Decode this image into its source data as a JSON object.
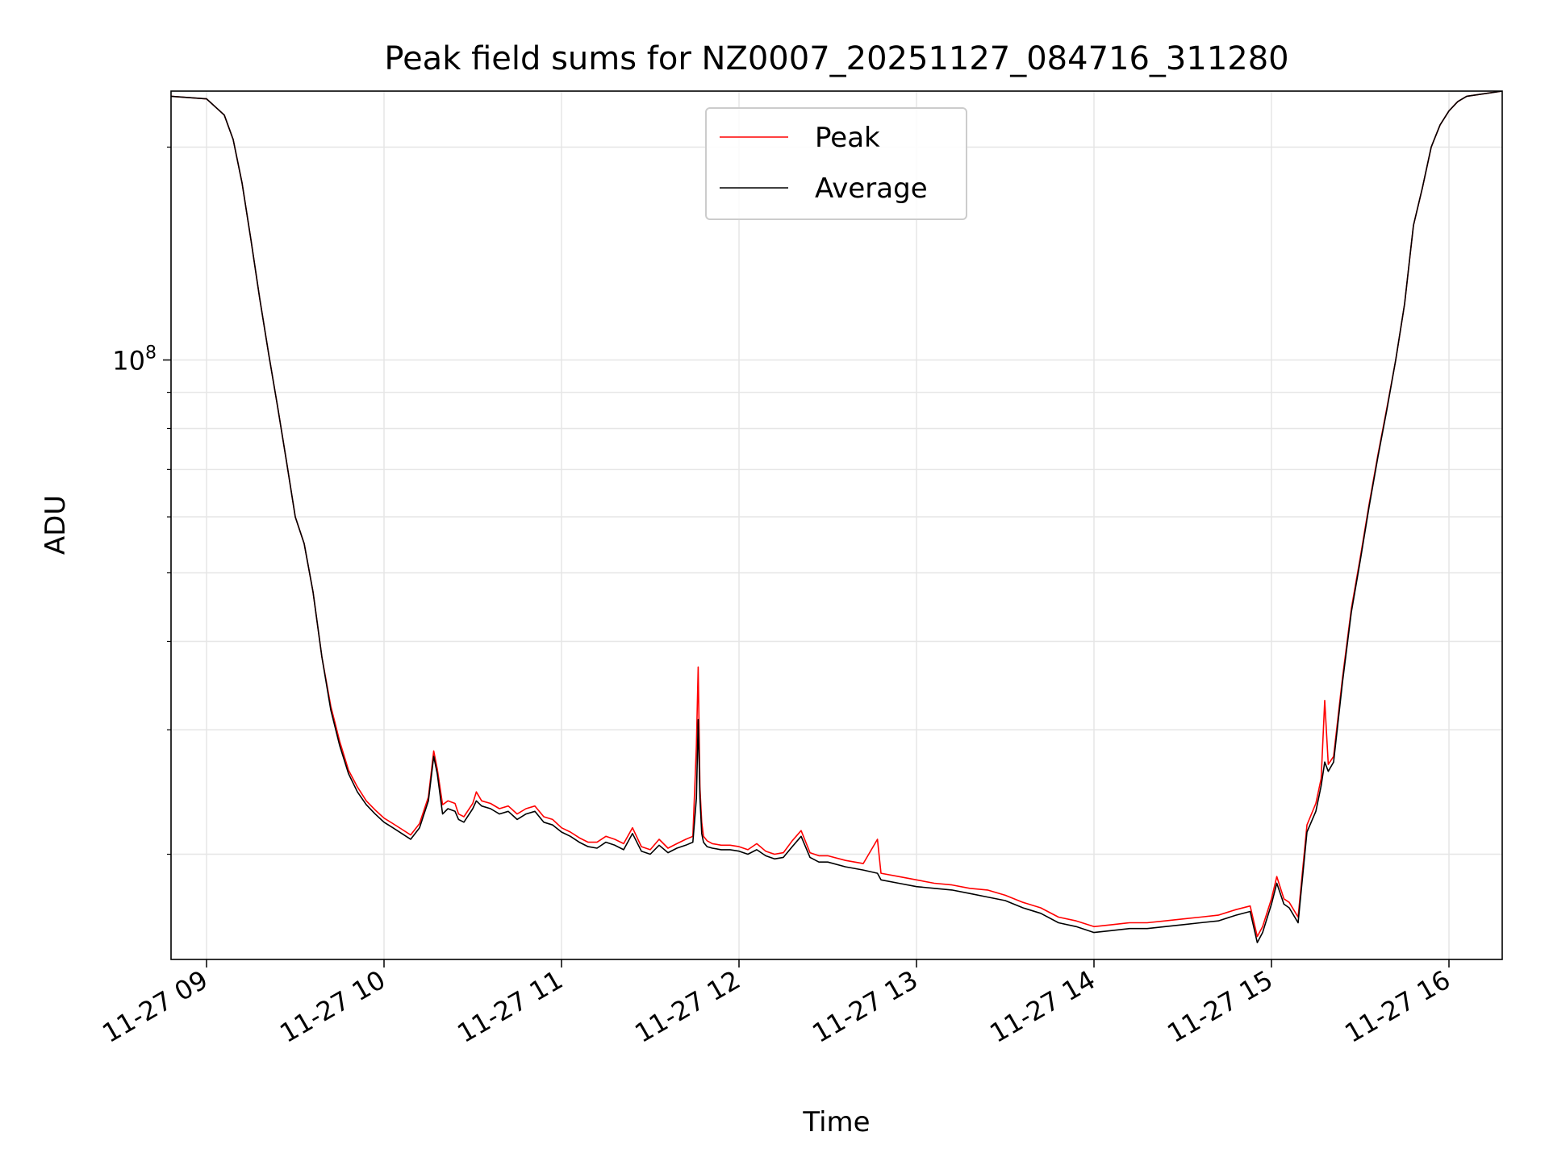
{
  "chart_data": {
    "type": "line",
    "title": "Peak field sums for NZ0007_20251127_084716_311280",
    "xlabel": "Time",
    "ylabel": "ADU",
    "yscale": "log",
    "grid": true,
    "grid_minor": true,
    "legend": {
      "placement": "top-center",
      "entries": [
        "Peak",
        "Average"
      ]
    },
    "x_ticks": [
      "11-27 09",
      "11-27 10",
      "11-27 11",
      "11-27 12",
      "11-27 13",
      "11-27 14",
      "11-27 15",
      "11-27 16"
    ],
    "x_tick_hours": [
      9,
      10,
      11,
      12,
      13,
      14,
      15,
      16
    ],
    "xlim_hours": [
      8.8,
      16.3
    ],
    "y_tick_labels": [
      {
        "value": 100000000,
        "base": "10",
        "exp": "8"
      }
    ],
    "y_minor_ticks": [
      20000000,
      30000000,
      40000000,
      50000000,
      60000000,
      70000000,
      80000000,
      90000000,
      200000000
    ],
    "ylim": [
      14200000,
      240000000
    ],
    "series": [
      {
        "name": "Average",
        "color": "#000000",
        "x_hours": [
          8.8,
          9.0,
          9.1,
          9.15,
          9.2,
          9.25,
          9.3,
          9.35,
          9.4,
          9.45,
          9.5,
          9.55,
          9.6,
          9.65,
          9.7,
          9.75,
          9.8,
          9.85,
          9.9,
          9.95,
          10.0,
          10.05,
          10.1,
          10.15,
          10.2,
          10.25,
          10.28,
          10.3,
          10.33,
          10.36,
          10.4,
          10.42,
          10.45,
          10.5,
          10.52,
          10.55,
          10.6,
          10.65,
          10.7,
          10.75,
          10.8,
          10.85,
          10.9,
          10.95,
          11.0,
          11.05,
          11.1,
          11.15,
          11.2,
          11.25,
          11.3,
          11.35,
          11.4,
          11.45,
          11.5,
          11.55,
          11.6,
          11.65,
          11.7,
          11.74,
          11.76,
          11.77,
          11.78,
          11.79,
          11.8,
          11.82,
          11.85,
          11.9,
          11.95,
          12.0,
          12.05,
          12.1,
          12.15,
          12.2,
          12.25,
          12.3,
          12.35,
          12.4,
          12.45,
          12.5,
          12.6,
          12.7,
          12.78,
          12.8,
          12.9,
          13.0,
          13.1,
          13.2,
          13.3,
          13.4,
          13.5,
          13.6,
          13.7,
          13.8,
          13.9,
          14.0,
          14.1,
          14.2,
          14.3,
          14.4,
          14.5,
          14.6,
          14.7,
          14.8,
          14.88,
          14.92,
          14.95,
          15.0,
          15.03,
          15.07,
          15.1,
          15.15,
          15.2,
          15.25,
          15.28,
          15.3,
          15.32,
          15.35,
          15.4,
          15.45,
          15.5,
          15.55,
          15.6,
          15.65,
          15.7,
          15.75,
          15.78,
          15.8,
          15.85,
          15.9,
          15.95,
          16.0,
          16.05,
          16.1,
          16.2,
          16.3
        ],
        "values_millions": [
          236,
          234,
          222,
          205,
          178,
          148,
          122,
          102,
          86,
          72,
          60,
          55,
          47,
          38,
          32,
          28.5,
          26,
          24.5,
          23.5,
          22.8,
          22.2,
          21.8,
          21.4,
          21.0,
          21.8,
          23.8,
          27.5,
          26.0,
          22.8,
          23.2,
          23.0,
          22.4,
          22.2,
          23.2,
          23.8,
          23.4,
          23.2,
          22.8,
          23.0,
          22.4,
          22.8,
          23.0,
          22.2,
          22.0,
          21.5,
          21.2,
          20.8,
          20.5,
          20.4,
          20.8,
          20.6,
          20.3,
          21.4,
          20.2,
          20.0,
          20.6,
          20.1,
          20.4,
          20.6,
          20.8,
          24.0,
          31.0,
          24.0,
          21.4,
          20.8,
          20.5,
          20.4,
          20.3,
          20.3,
          20.2,
          20.0,
          20.3,
          19.9,
          19.7,
          19.8,
          20.5,
          21.2,
          19.8,
          19.5,
          19.5,
          19.2,
          19.0,
          18.8,
          18.4,
          18.2,
          18.0,
          17.9,
          17.8,
          17.6,
          17.4,
          17.2,
          16.8,
          16.5,
          16.0,
          15.8,
          15.5,
          15.6,
          15.7,
          15.7,
          15.8,
          15.9,
          16.0,
          16.1,
          16.4,
          16.6,
          15.0,
          15.5,
          17.0,
          18.2,
          17.0,
          16.8,
          16.0,
          21.5,
          23.0,
          25.0,
          27.0,
          26.2,
          27.0,
          35.0,
          44.0,
          52.0,
          62.0,
          73.0,
          85.0,
          100.0,
          120.0,
          140.0,
          155.0,
          175.0,
          200.0,
          215.0,
          225.0,
          232.0,
          236.0,
          238.0,
          240.0
        ]
      },
      {
        "name": "Peak",
        "color": "#ff0000",
        "x_hours": [
          8.8,
          9.0,
          9.1,
          9.15,
          9.2,
          9.25,
          9.3,
          9.35,
          9.4,
          9.45,
          9.5,
          9.55,
          9.6,
          9.65,
          9.7,
          9.75,
          9.8,
          9.85,
          9.9,
          9.95,
          10.0,
          10.05,
          10.1,
          10.15,
          10.2,
          10.25,
          10.28,
          10.3,
          10.33,
          10.36,
          10.4,
          10.42,
          10.45,
          10.5,
          10.52,
          10.55,
          10.6,
          10.65,
          10.7,
          10.75,
          10.8,
          10.85,
          10.9,
          10.95,
          11.0,
          11.05,
          11.1,
          11.15,
          11.2,
          11.25,
          11.3,
          11.35,
          11.4,
          11.45,
          11.5,
          11.55,
          11.6,
          11.65,
          11.7,
          11.74,
          11.76,
          11.77,
          11.78,
          11.79,
          11.8,
          11.82,
          11.85,
          11.9,
          11.95,
          12.0,
          12.05,
          12.1,
          12.15,
          12.2,
          12.25,
          12.3,
          12.35,
          12.4,
          12.45,
          12.5,
          12.6,
          12.7,
          12.78,
          12.8,
          12.9,
          13.0,
          13.1,
          13.2,
          13.3,
          13.4,
          13.5,
          13.6,
          13.7,
          13.8,
          13.9,
          14.0,
          14.1,
          14.2,
          14.3,
          14.4,
          14.5,
          14.6,
          14.7,
          14.8,
          14.88,
          14.92,
          14.95,
          15.0,
          15.03,
          15.07,
          15.1,
          15.15,
          15.2,
          15.25,
          15.28,
          15.3,
          15.32,
          15.35,
          15.4,
          15.45,
          15.5,
          15.55,
          15.6,
          15.65,
          15.7,
          15.75,
          15.78,
          15.8,
          15.85,
          15.9,
          15.95,
          16.0,
          16.05,
          16.1,
          16.2,
          16.3
        ],
        "values_millions": [
          236,
          234,
          222,
          205,
          178,
          148,
          122,
          102,
          86,
          72,
          60,
          55,
          47,
          38,
          32.4,
          28.9,
          26.3,
          24.9,
          23.8,
          23.1,
          22.5,
          22.1,
          21.7,
          21.3,
          22.1,
          24.1,
          28.0,
          26.4,
          23.5,
          23.8,
          23.6,
          22.8,
          22.6,
          23.6,
          24.5,
          23.8,
          23.6,
          23.2,
          23.4,
          22.8,
          23.2,
          23.4,
          22.6,
          22.4,
          21.8,
          21.5,
          21.1,
          20.8,
          20.8,
          21.2,
          21.0,
          20.7,
          21.8,
          20.5,
          20.3,
          21.0,
          20.4,
          20.7,
          21.0,
          21.2,
          28.5,
          36.8,
          24.8,
          22.2,
          21.2,
          20.9,
          20.7,
          20.6,
          20.6,
          20.5,
          20.3,
          20.7,
          20.2,
          20.0,
          20.1,
          20.9,
          21.6,
          20.1,
          19.9,
          19.9,
          19.6,
          19.4,
          21.0,
          18.8,
          18.6,
          18.4,
          18.2,
          18.1,
          17.9,
          17.8,
          17.5,
          17.1,
          16.8,
          16.3,
          16.1,
          15.8,
          15.9,
          16.0,
          16.0,
          16.1,
          16.2,
          16.3,
          16.4,
          16.7,
          16.9,
          15.3,
          15.8,
          17.3,
          18.6,
          17.3,
          17.1,
          16.3,
          22.0,
          23.6,
          25.6,
          33.0,
          26.8,
          27.5,
          35.5,
          44.5,
          52.5,
          62.5,
          73.5,
          85.5,
          100.0,
          120.0,
          140.0,
          155.0,
          175.0,
          200.0,
          215.0,
          225.0,
          232.0,
          236.0,
          238.0,
          240.0
        ]
      }
    ]
  }
}
